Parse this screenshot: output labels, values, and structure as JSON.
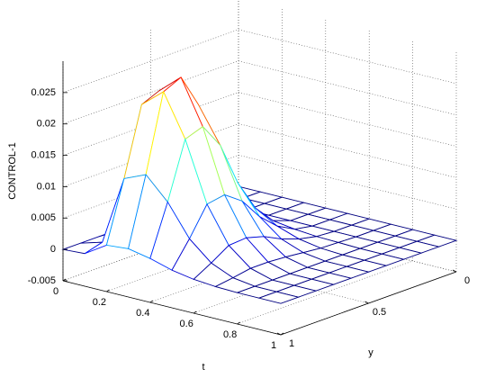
{
  "chart_data": {
    "type": "mesh",
    "xlabel": "t",
    "ylabel": "y",
    "zlabel": "CONTROL-1",
    "x": [
      0,
      0.1,
      0.2,
      0.3,
      0.4,
      0.5,
      0.6,
      0.7,
      0.8,
      0.9,
      1
    ],
    "y": [
      0,
      0.1,
      0.2,
      0.3,
      0.4,
      0.5,
      0.6,
      0.7,
      0.8,
      0.9,
      1
    ],
    "z": [
      [
        0,
        0,
        0,
        0,
        0,
        0,
        0,
        0,
        0,
        0,
        0
      ],
      [
        0,
        0,
        0,
        0.0001,
        0.0004,
        0.0009,
        0.0016,
        0.002,
        0.0019,
        0.001,
        0.0002
      ],
      [
        0,
        0,
        0,
        0.0012,
        0.0048,
        0.0108,
        0.0192,
        0.024,
        0.0228,
        0.012,
        0.0024
      ],
      [
        0,
        0,
        0,
        0.0014,
        0.0054,
        0.0122,
        0.0216,
        0.027,
        0.0257,
        0.0135,
        0.0027
      ],
      [
        0,
        0,
        0,
        0.001,
        0.004,
        0.009,
        0.016,
        0.02,
        0.019,
        0.01,
        0.002
      ],
      [
        0,
        0,
        0,
        0.0005,
        0.002,
        0.0045,
        0.008,
        0.01,
        0.0095,
        0.005,
        0.001
      ],
      [
        0,
        0,
        0,
        0.0002,
        0.0008,
        0.0018,
        0.0032,
        0.004,
        0.0038,
        0.002,
        0.0004
      ],
      [
        0,
        0,
        0,
        0.0001,
        0.0002,
        0.0005,
        0.0008,
        0.001,
        0.001,
        0.0005,
        0.0001
      ],
      [
        0,
        0,
        0,
        0,
        0,
        0,
        0,
        0,
        0,
        0,
        0
      ],
      [
        0,
        0,
        0,
        0,
        0,
        0,
        0,
        0,
        0,
        0,
        0
      ],
      [
        0,
        0,
        0,
        0,
        0,
        0,
        0,
        0,
        0,
        0,
        0
      ]
    ],
    "xlim": [
      0,
      1
    ],
    "ylim": [
      0,
      1
    ],
    "zlim": [
      -0.005,
      0.03
    ],
    "xticks": [
      0,
      0.2,
      0.4,
      0.6,
      0.8,
      1
    ],
    "yticks": [
      0,
      0.5,
      1
    ],
    "zticks": [
      -0.005,
      0,
      0.005,
      0.01,
      0.015,
      0.02,
      0.025
    ],
    "colormap": "jet",
    "grid": true
  }
}
